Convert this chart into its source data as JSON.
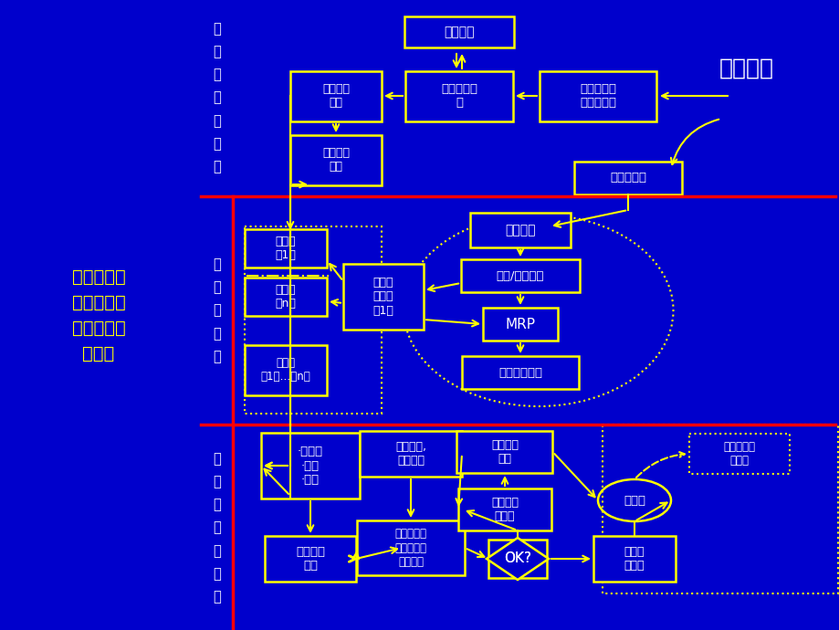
{
  "bg": "#0000CC",
  "Y": "#FFFF00",
  "W": "#FFFFFF",
  "R": "#FF0000",
  "boxes": {
    "tuili": [
      503,
      35,
      120,
      34
    ],
    "hezuoduice": [
      503,
      105,
      118,
      55
    ],
    "hezuohuoban": [
      655,
      105,
      128,
      55
    ],
    "quedingduixiang": [
      368,
      105,
      100,
      55
    ],
    "hetongduice": [
      368,
      175,
      100,
      55
    ],
    "dingdanyuce": [
      688,
      195,
      118,
      36
    ],
    "xiaoshoujihua": [
      570,
      252,
      110,
      38
    ],
    "zizhiwenbao": [
      570,
      302,
      130,
      36
    ],
    "waigou": [
      420,
      325,
      88,
      72
    ],
    "MRP": [
      570,
      355,
      82,
      36
    ],
    "chejian": [
      570,
      408,
      128,
      36
    ],
    "supplier1": [
      313,
      272,
      90,
      42
    ],
    "suppliern": [
      313,
      325,
      90,
      42
    ],
    "fenshaoshang": [
      313,
      405,
      90,
      55
    ],
    "jiaohuo": [
      340,
      510,
      108,
      72
    ],
    "shujuchuli": [
      340,
      612,
      100,
      50
    ],
    "zhuanjia": [
      450,
      497,
      112,
      50
    ],
    "gongyinglian": [
      450,
      600,
      118,
      60
    ],
    "OK": [
      567,
      612,
      64,
      42
    ],
    "lilijiguize": [
      695,
      612,
      90,
      50
    ],
    "liwaiguize": [
      553,
      495,
      105,
      46
    ],
    "yuanyingxi": [
      553,
      558,
      102,
      46
    ],
    "guanliceng": [
      695,
      548,
      80,
      46
    ],
    "fangqiyuanyou": [
      810,
      497,
      110,
      44
    ]
  },
  "texts": {
    "tuili": "推理过程",
    "hezuoduice": "合作对策决\n策",
    "hezuohuoban": "合作伙伴基\n础数据处理",
    "quedingduixiang": "确定合作\n对象",
    "hetongduice": "合同决策\n模型",
    "dingdanyuce": "订单、预测",
    "xiaoshoujihua": "销售计划",
    "zizhiwenbao": "自制/外包决策",
    "waigou": "外购、\n外协件\n（1）",
    "MRP": "MRP",
    "chejian": "车间作业管理",
    "supplier1": "供应商\n（1）",
    "suppliern": "供应商\n（n）",
    "fenshaoshang": "分销商\n（1，…，n）",
    "jiaohuo": "·交货期\n·品种\n·数量",
    "shujuchuli": "数据处理\n模型",
    "zhuanjia": "专家系统,\n知识推理",
    "gongyinglian": "供应链企业\n运作状况分\n析与判断",
    "OK": "OK?",
    "lilijiguize": "例行管\n理规则",
    "liwaiguize": "例外管理\n规则",
    "yuanyingxi": "原因分析\n与预警",
    "guanliceng": "管理层",
    "fangqiyuanyou": "放弃原有合\n作伙伴"
  },
  "fontsizes": {
    "tuili": 10,
    "hezuoduice": 9.5,
    "hezuohuoban": 9.5,
    "quedingduixiang": 9,
    "hetongduice": 9,
    "dingdanyuce": 9.5,
    "xiaoshoujihua": 10,
    "zizhiwenbao": 9.5,
    "waigou": 9,
    "MRP": 11,
    "chejian": 9.5,
    "supplier1": 9,
    "suppliern": 9,
    "fenshaoshang": 8.5,
    "jiaohuo": 9.5,
    "shujuchuli": 9.5,
    "zhuanjia": 9,
    "gongyinglian": 8.5,
    "OK": 11,
    "lilijiguize": 9,
    "liwaiguize": 9,
    "yuanyingxi": 9,
    "guanliceng": 9.5,
    "fangqiyuanyou": 8.5
  }
}
